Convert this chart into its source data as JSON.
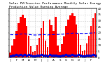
{
  "title": "Solar PV/Inverter Performance Monthly Solar Energy Production Value Running Average",
  "bar_values": [
    4.2,
    9.5,
    15.0,
    22.0,
    28.0,
    33.0,
    35.0,
    32.0,
    26.0,
    18.0,
    9.0,
    4.5,
    5.0,
    10.5,
    16.0,
    24.0,
    30.0,
    14.0,
    8.5,
    31.0,
    26.5,
    22.0,
    33.0,
    10.0,
    4.8,
    11.0,
    17.0,
    25.5,
    31.0,
    34.5,
    36.0,
    33.5,
    27.0,
    19.5,
    10.5,
    5.2,
    5.5,
    11.5,
    18.0,
    26.0,
    32.0,
    36.0
  ],
  "running_avg": [
    18.5,
    18.5,
    18.5,
    18.5,
    18.8,
    19.0,
    19.2,
    19.2,
    19.0,
    18.8,
    18.5,
    18.3,
    18.3,
    18.3,
    18.4,
    18.5,
    18.7,
    18.5,
    18.3,
    18.5,
    18.6,
    18.7,
    18.9,
    18.7,
    18.8,
    18.9,
    19.0,
    19.2,
    19.4,
    19.6,
    19.8,
    19.9,
    19.8,
    19.7,
    19.6,
    19.5,
    19.6,
    19.7,
    19.8,
    19.9,
    20.0,
    20.1
  ],
  "scatter_y": [
    1.2,
    2.0,
    1.5,
    2.1,
    1.8,
    2.2,
    1.9,
    2.1,
    1.7,
    2.3,
    1.6,
    1.2,
    1.1,
    2.0,
    1.6,
    2.1,
    1.9,
    1.5,
    1.4,
    2.1,
    1.8,
    2.0,
    2.0,
    1.3,
    1.2,
    2.0,
    1.7,
    2.2,
    2.0,
    2.0,
    2.1,
    2.0,
    1.9,
    2.1,
    1.7,
    1.4,
    1.3,
    2.0,
    1.8,
    2.0,
    2.1,
    2.0
  ],
  "bar_color": "#ff0000",
  "avg_color": "#0000ff",
  "scatter_color": "#0000cc",
  "bg_color": "#ffffff",
  "grid_color": "#aaaaaa",
  "ylim": [
    0,
    40
  ],
  "yticks": [
    0,
    5,
    10,
    15,
    20,
    25,
    30,
    35,
    40
  ],
  "title_fontsize": 3.2,
  "tick_fontsize": 2.8,
  "n_bars": 42
}
